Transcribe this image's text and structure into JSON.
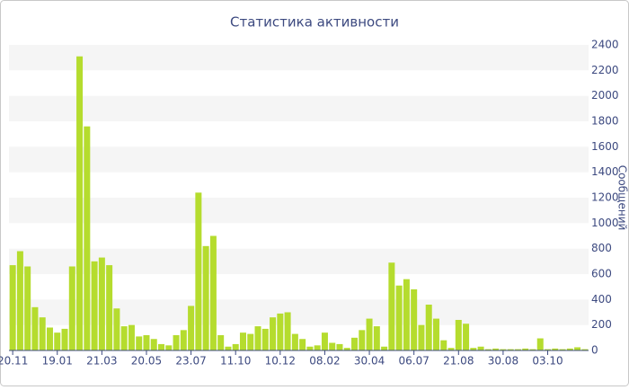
{
  "chart_data": {
    "type": "bar",
    "title": "Статистика активности",
    "y_label": "Сообщений",
    "categories": [
      "20.11",
      null,
      null,
      null,
      null,
      null,
      "19.01",
      null,
      null,
      null,
      null,
      null,
      "21.03",
      null,
      null,
      null,
      null,
      null,
      "20.05",
      null,
      null,
      null,
      null,
      null,
      "23.07",
      null,
      null,
      null,
      null,
      null,
      "11.10",
      null,
      null,
      null,
      null,
      null,
      "10.12",
      null,
      null,
      null,
      null,
      null,
      "08.02",
      null,
      null,
      null,
      null,
      null,
      "30.04",
      null,
      null,
      null,
      null,
      null,
      "06.07",
      null,
      null,
      null,
      null,
      null,
      "21.08",
      null,
      null,
      null,
      null,
      null,
      "30.08",
      null,
      null,
      null,
      null,
      null,
      "03.10",
      null,
      null,
      null,
      null,
      null
    ],
    "values": [
      670,
      780,
      660,
      340,
      260,
      180,
      140,
      170,
      660,
      2310,
      1760,
      700,
      730,
      670,
      330,
      190,
      200,
      110,
      120,
      90,
      50,
      40,
      120,
      160,
      350,
      1240,
      820,
      900,
      120,
      30,
      50,
      140,
      130,
      190,
      170,
      260,
      290,
      300,
      130,
      90,
      30,
      40,
      140,
      60,
      50,
      20,
      100,
      160,
      250,
      190,
      30,
      690,
      510,
      560,
      480,
      200,
      360,
      250,
      80,
      20,
      240,
      210,
      20,
      30,
      10,
      15,
      10,
      10,
      10,
      15,
      10,
      95,
      10,
      15,
      10,
      15,
      25,
      10
    ],
    "color": "#b5dc2e",
    "ylim": [
      0,
      2400
    ],
    "yticks": [
      0,
      200,
      400,
      600,
      800,
      1000,
      1200,
      1400,
      1600,
      1800,
      2000,
      2200,
      2400
    ],
    "grid": true
  }
}
